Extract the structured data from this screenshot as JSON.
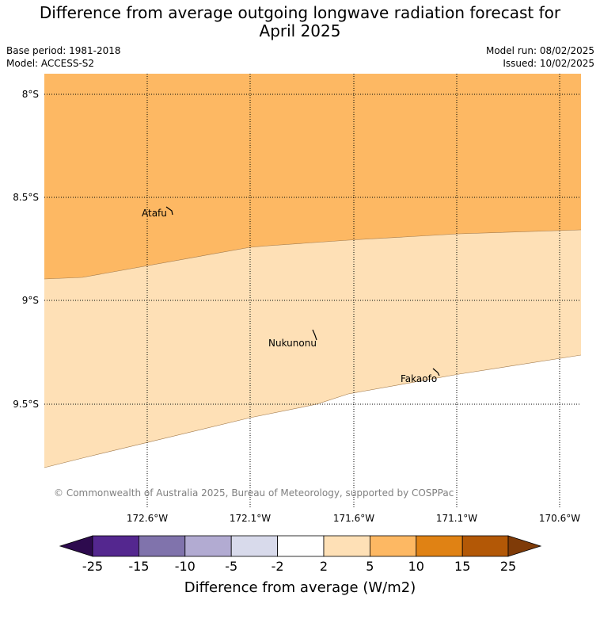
{
  "title_line1": "Difference from average outgoing longwave radiation forecast for",
  "title_line2": "April 2025",
  "base_period": "Base period: 1981-2018",
  "model": "Model: ACCESS-S2",
  "model_run": "Model run: 08/02/2025",
  "issued": "Issued: 10/02/2025",
  "lat_labels": [
    "8°S",
    "8.5°S",
    "9°S",
    "9.5°S"
  ],
  "lon_labels": [
    "172.6°W",
    "172.1°W",
    "171.6°W",
    "171.1°W",
    "170.6°W"
  ],
  "places": {
    "atafu": "Atafu",
    "nukunonu": "Nukunonu",
    "fakaofo": "Fakaofo"
  },
  "copyright": "© Commonwealth of Australia 2025, Bureau of Meteorology, supported by COSPPac",
  "colorbar": {
    "ticks": [
      "-25",
      "-15",
      "-10",
      "-5",
      "-2",
      "2",
      "5",
      "10",
      "15",
      "25"
    ],
    "label": "Difference from average (W/m2)",
    "colors": [
      "#2d0a4e",
      "#54278f",
      "#8073ac",
      "#b2abd2",
      "#d8daeb",
      "#ffffff",
      "#fee0b6",
      "#fdb863",
      "#e08214",
      "#b35806",
      "#7f3b08"
    ]
  },
  "fill_colors": {
    "band_5_10": "#fdb863",
    "band_2_5": "#fee0b6"
  }
}
